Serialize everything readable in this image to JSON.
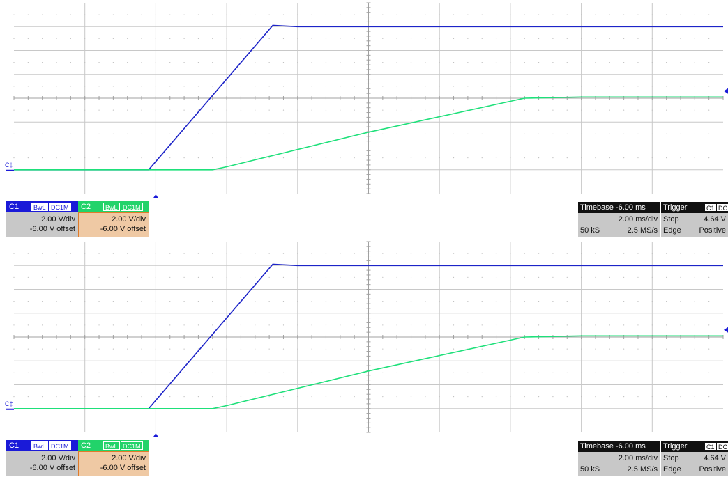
{
  "colors": {
    "ch1": "#1d24c8",
    "ch2": "#1ee07a",
    "ch1_label_bg": "#1a1ad8",
    "ch2_label_bg": "#22d36a",
    "ch2_settings_bg": "#efc9a4",
    "ch2_settings_border": "#e07b2a",
    "info_gray": "#c8c8c8",
    "grid": "#c8c8c8",
    "axis": "#a0a0a0",
    "marker": "#1a1ad8"
  },
  "panels": [
    {
      "ground_marker": "C‡",
      "channels": [
        {
          "name": "C1",
          "chips": [
            "BwL",
            "DC1M"
          ],
          "volts_div": "2.00 V/div",
          "offset": "-6.00 V offset"
        },
        {
          "name": "C2",
          "chips": [
            "BwL",
            "DC1M"
          ],
          "volts_div": "2.00 V/div",
          "offset": "-6.00 V offset"
        }
      ],
      "timebase": {
        "title": "Timebase",
        "value": "-6.00 ms",
        "time_div": "2.00 ms/div",
        "samples": "50 kS",
        "rate": "2.5 MS/s"
      },
      "trigger": {
        "title": "Trigger",
        "chips": [
          "C1",
          "DC"
        ],
        "mode": "Stop",
        "level": "4.64 V",
        "type": "Edge",
        "slope": "Positive"
      }
    },
    {
      "ground_marker": "C‡",
      "channels": [
        {
          "name": "C1",
          "chips": [
            "BwL",
            "DC1M"
          ],
          "volts_div": "2.00 V/div",
          "offset": "-6.00 V offset"
        },
        {
          "name": "C2",
          "chips": [
            "BwL",
            "DC1M"
          ],
          "volts_div": "2.00 V/div",
          "offset": "-6.00 V offset"
        }
      ],
      "timebase": {
        "title": "Timebase",
        "value": "-6.00 ms",
        "time_div": "2.00 ms/div",
        "samples": "50 kS",
        "rate": "2.5 MS/s"
      },
      "trigger": {
        "title": "Trigger",
        "chips": [
          "C1",
          "DC"
        ],
        "mode": "Stop",
        "level": "4.64 V",
        "type": "Edge",
        "slope": "Positive"
      }
    }
  ],
  "chart_data": [
    {
      "type": "line",
      "x_divisions": 10,
      "y_divisions": 8,
      "xlim": [
        -10,
        10
      ],
      "ylim": [
        -8,
        8
      ],
      "grid": true,
      "series": [
        {
          "name": "C1",
          "x": [
            -10,
            -6.2,
            -2.7,
            -2,
            10
          ],
          "y": [
            -6,
            -6,
            6.1,
            6,
            6
          ]
        },
        {
          "name": "C2",
          "x": [
            -10,
            -4.4,
            -4.0,
            0,
            4.4,
            6.0,
            10
          ],
          "y": [
            -6,
            -6,
            -5.75,
            -2.85,
            0,
            0.1,
            0.1
          ]
        }
      ]
    },
    {
      "type": "line",
      "x_divisions": 10,
      "y_divisions": 8,
      "xlim": [
        -10,
        10
      ],
      "ylim": [
        -8,
        8
      ],
      "grid": true,
      "series": [
        {
          "name": "C1",
          "x": [
            -10,
            -6.2,
            -2.7,
            -2,
            10
          ],
          "y": [
            -6,
            -6,
            6.1,
            6,
            6
          ]
        },
        {
          "name": "C2",
          "x": [
            -10,
            -4.4,
            -4.0,
            0,
            4.4,
            6.0,
            10
          ],
          "y": [
            -6,
            -6,
            -5.75,
            -2.85,
            0,
            0.1,
            0.1
          ]
        }
      ]
    }
  ]
}
